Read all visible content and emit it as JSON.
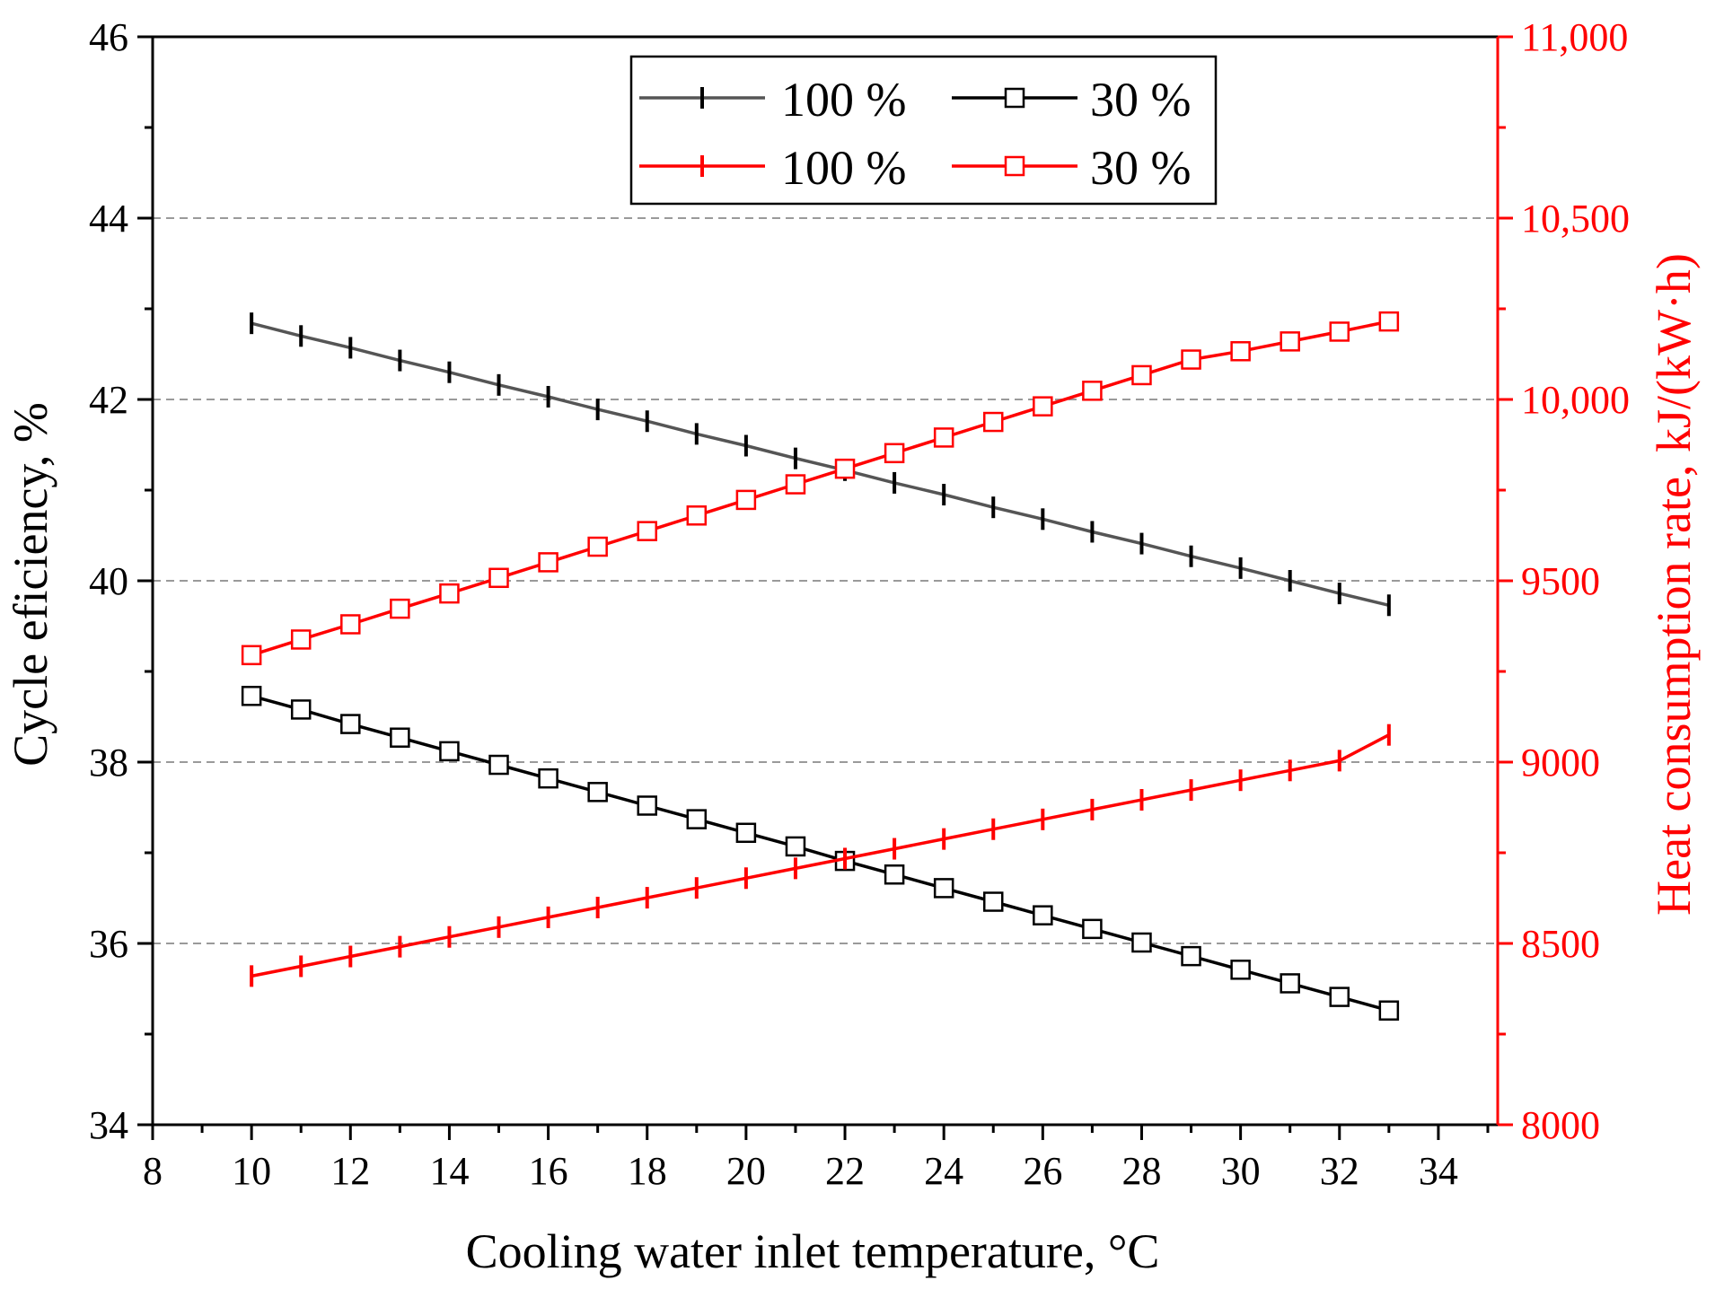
{
  "chart_data": {
    "type": "line",
    "xlabel": "Cooling water inlet temperature,  °C",
    "ylabel_left": "Cycle eficiency,  %",
    "ylabel_right": "Heat consumption rate,  kJ/(kW·h)",
    "xlim": [
      8,
      35.2
    ],
    "ylim_left": [
      34,
      46
    ],
    "ylim_right": [
      8000,
      11000
    ],
    "x_ticks": [
      "8",
      "10",
      "12",
      "14",
      "16",
      "18",
      "20",
      "22",
      "24",
      "26",
      "28",
      "30",
      "32",
      "34"
    ],
    "y_left_ticks": [
      "34",
      "36",
      "38",
      "40",
      "42",
      "44",
      "46"
    ],
    "y_right_ticks": [
      "8000",
      "8500",
      "9000",
      "9500",
      "10,000",
      "10,500",
      "11,000"
    ],
    "grid": "horizontal dashed at left-axis major ticks",
    "legend_position": "top-center",
    "legend": [
      "100 %",
      "30 %",
      "100 %",
      "30 %"
    ],
    "colors": {
      "efficiency_100": "#555555",
      "efficiency_30": "#000000",
      "heat_rate": "#ff0000",
      "axis_right": "#ff0000"
    },
    "x": [
      10,
      11,
      12,
      13,
      14,
      15,
      16,
      17,
      18,
      19,
      20,
      21,
      22,
      23,
      24,
      25,
      26,
      27,
      28,
      29,
      30,
      31,
      32,
      33
    ],
    "series": [
      {
        "name": "100 %",
        "axis": "left",
        "color": "#555555",
        "marker": "vertical-tick",
        "values": [
          42.84,
          42.7,
          42.57,
          42.43,
          42.3,
          42.16,
          42.03,
          41.89,
          41.76,
          41.62,
          41.49,
          41.35,
          41.22,
          41.08,
          40.95,
          40.81,
          40.68,
          40.54,
          40.41,
          40.27,
          40.14,
          40.0,
          39.86,
          39.73
        ]
      },
      {
        "name": "30 %",
        "axis": "left",
        "color": "#000000",
        "marker": "open-square",
        "values": [
          38.73,
          38.58,
          38.42,
          38.27,
          38.12,
          37.97,
          37.82,
          37.67,
          37.52,
          37.37,
          37.22,
          37.07,
          36.91,
          36.76,
          36.61,
          36.46,
          36.31,
          36.16,
          36.01,
          35.86,
          35.71,
          35.56,
          35.41,
          35.26
        ]
      },
      {
        "name": "100 %",
        "axis": "right",
        "color": "#ff0000",
        "marker": "vertical-tick",
        "values": [
          8410,
          8437,
          8464,
          8491,
          8518,
          8545,
          8572,
          8599,
          8626,
          8653,
          8680,
          8707,
          8734,
          8761,
          8788,
          8815,
          8842,
          8869,
          8896,
          8923,
          8950,
          8977,
          9004,
          9075
        ]
      },
      {
        "name": "30 %",
        "axis": "right",
        "color": "#ff0000",
        "marker": "open-square",
        "values": [
          9295,
          9338,
          9380,
          9423,
          9465,
          9508,
          9551,
          9594,
          9637,
          9680,
          9723,
          9766,
          9809,
          9852,
          9895,
          9938,
          9981,
          10024,
          10067,
          10110,
          10133,
          10160,
          10187,
          10215
        ]
      }
    ]
  }
}
